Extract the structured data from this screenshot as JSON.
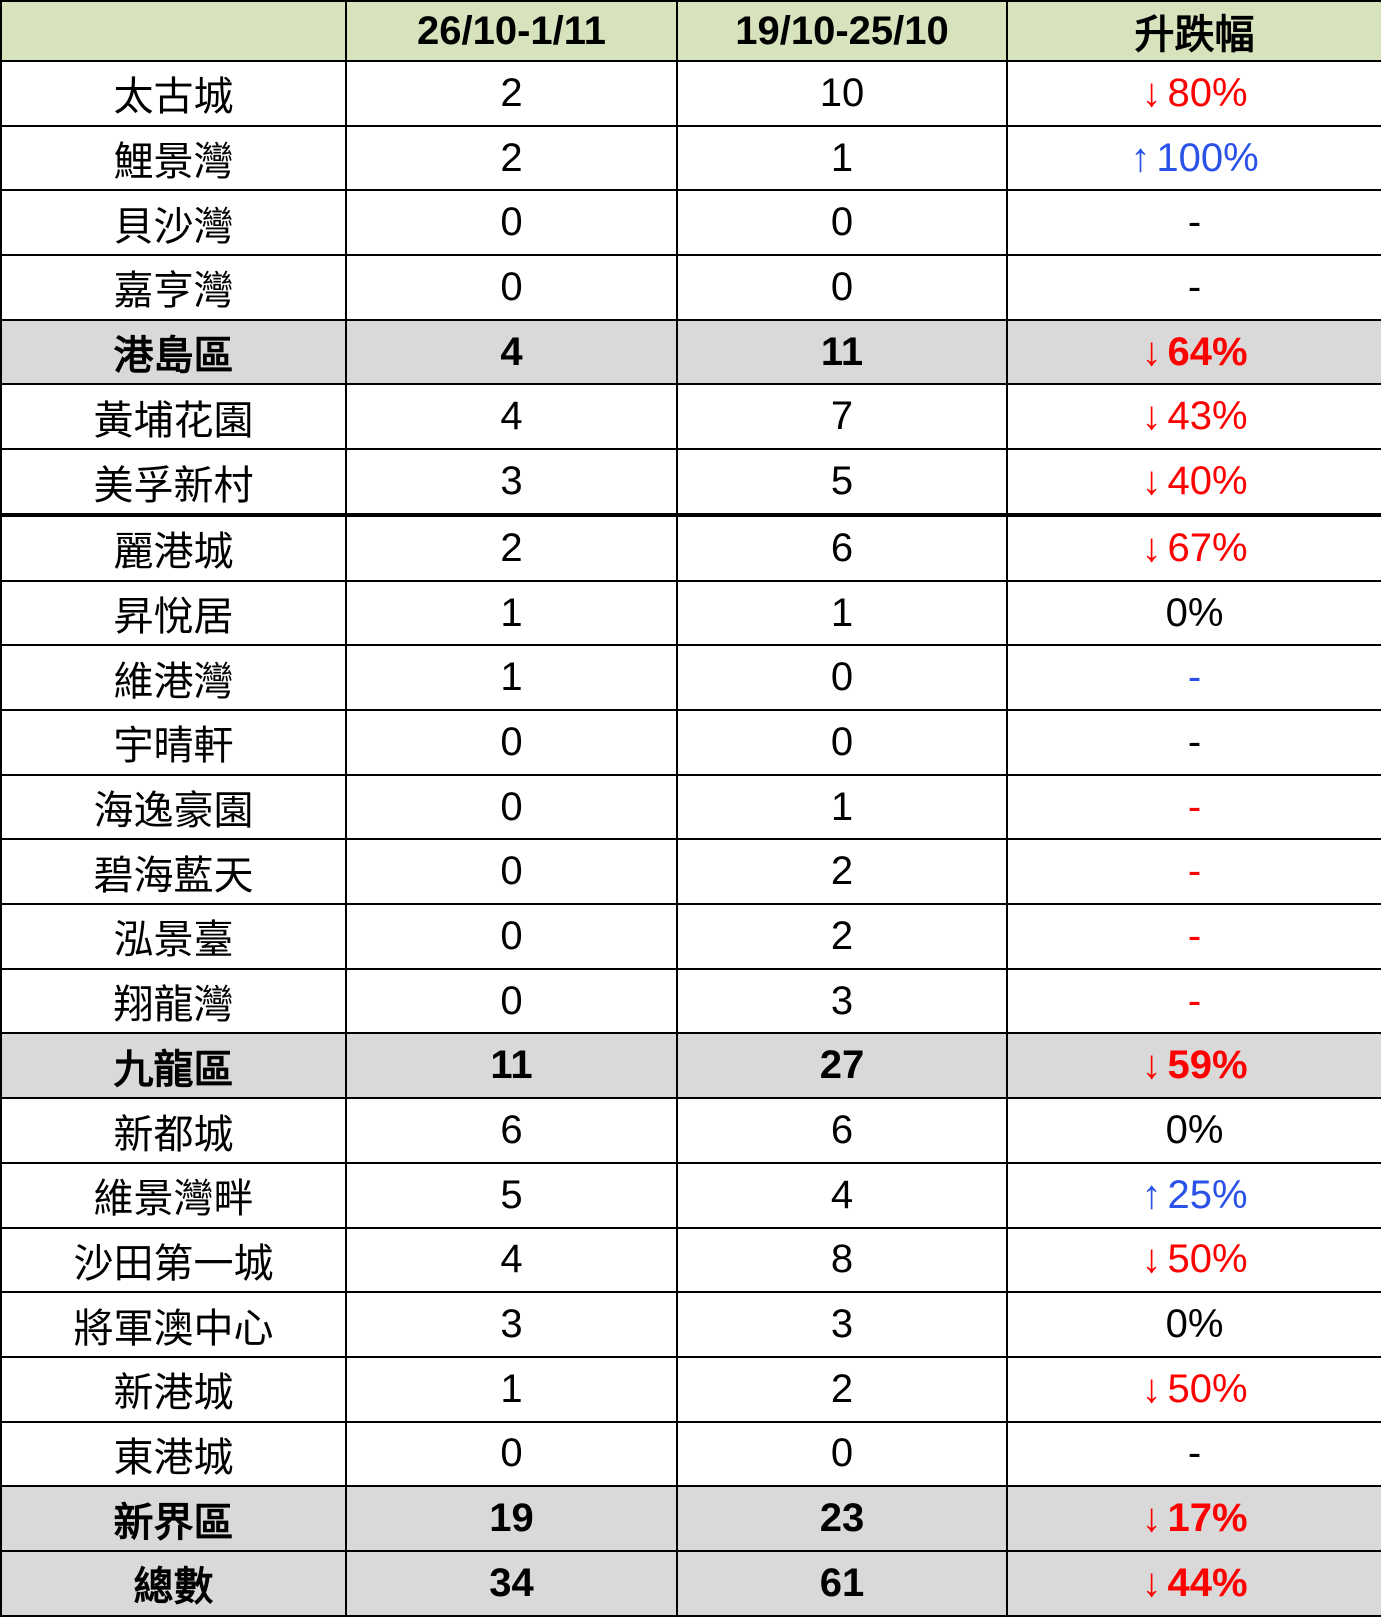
{
  "colors": {
    "header_bg": "#d6e3bc",
    "section_bg": "#d9d9d9",
    "red": "#ff0000",
    "blue": "#2a52e8",
    "border": "#000000",
    "text": "#000000"
  },
  "table": {
    "header": {
      "estate": "",
      "current_week": "26/10-1/11",
      "previous_week": "19/10-25/10",
      "change": "升跌幅"
    },
    "rows": [
      {
        "name": "太古城",
        "section": false,
        "current": "2",
        "previous": "10",
        "change": {
          "arrow": "↓",
          "text": "80%",
          "color": "red"
        }
      },
      {
        "name": "鯉景灣",
        "section": false,
        "current": "2",
        "previous": "1",
        "change": {
          "arrow": "↑",
          "text": "100%",
          "color": "blue"
        }
      },
      {
        "name": "貝沙灣",
        "section": false,
        "current": "0",
        "previous": "0",
        "change": {
          "arrow": "",
          "text": "-",
          "color": "black"
        }
      },
      {
        "name": "嘉亨灣",
        "section": false,
        "current": "0",
        "previous": "0",
        "change": {
          "arrow": "",
          "text": "-",
          "color": "black"
        }
      },
      {
        "name": "港島區",
        "section": true,
        "current": "4",
        "previous": "11",
        "change": {
          "arrow": "↓",
          "text": "64%",
          "color": "red"
        }
      },
      {
        "name": "黃埔花園",
        "section": false,
        "current": "4",
        "previous": "7",
        "change": {
          "arrow": "↓",
          "text": "43%",
          "color": "red"
        }
      },
      {
        "name": "美孚新村",
        "section": false,
        "current": "3",
        "previous": "5",
        "change": {
          "arrow": "↓",
          "text": "40%",
          "color": "red"
        },
        "thick_border_bottom": true
      },
      {
        "name": "麗港城",
        "section": false,
        "current": "2",
        "previous": "6",
        "change": {
          "arrow": "↓",
          "text": "67%",
          "color": "red"
        }
      },
      {
        "name": "昇悅居",
        "section": false,
        "current": "1",
        "previous": "1",
        "change": {
          "arrow": "",
          "text": "0%",
          "color": "black"
        }
      },
      {
        "name": "維港灣",
        "section": false,
        "current": "1",
        "previous": "0",
        "change": {
          "arrow": "",
          "text": "-",
          "color": "blue"
        }
      },
      {
        "name": "宇晴軒",
        "section": false,
        "current": "0",
        "previous": "0",
        "change": {
          "arrow": "",
          "text": "-",
          "color": "black"
        }
      },
      {
        "name": "海逸豪園",
        "section": false,
        "current": "0",
        "previous": "1",
        "change": {
          "arrow": "",
          "text": "-",
          "color": "red"
        }
      },
      {
        "name": "碧海藍天",
        "section": false,
        "current": "0",
        "previous": "2",
        "change": {
          "arrow": "",
          "text": "-",
          "color": "red"
        }
      },
      {
        "name": "泓景臺",
        "section": false,
        "current": "0",
        "previous": "2",
        "change": {
          "arrow": "",
          "text": "-",
          "color": "red"
        }
      },
      {
        "name": "翔龍灣",
        "section": false,
        "current": "0",
        "previous": "3",
        "change": {
          "arrow": "",
          "text": "-",
          "color": "red"
        }
      },
      {
        "name": "九龍區",
        "section": true,
        "current": "11",
        "previous": "27",
        "change": {
          "arrow": "↓",
          "text": "59%",
          "color": "red"
        }
      },
      {
        "name": "新都城",
        "section": false,
        "current": "6",
        "previous": "6",
        "change": {
          "arrow": "",
          "text": "0%",
          "color": "black"
        }
      },
      {
        "name": "維景灣畔",
        "section": false,
        "current": "5",
        "previous": "4",
        "change": {
          "arrow": "↑",
          "text": "25%",
          "color": "blue"
        }
      },
      {
        "name": "沙田第一城",
        "section": false,
        "current": "4",
        "previous": "8",
        "change": {
          "arrow": "↓",
          "text": "50%",
          "color": "red"
        }
      },
      {
        "name": "將軍澳中心",
        "section": false,
        "current": "3",
        "previous": "3",
        "change": {
          "arrow": "",
          "text": "0%",
          "color": "black"
        }
      },
      {
        "name": "新港城",
        "section": false,
        "current": "1",
        "previous": "2",
        "change": {
          "arrow": "↓",
          "text": "50%",
          "color": "red"
        }
      },
      {
        "name": "東港城",
        "section": false,
        "current": "0",
        "previous": "0",
        "change": {
          "arrow": "",
          "text": "-",
          "color": "black"
        }
      },
      {
        "name": "新界區",
        "section": true,
        "current": "19",
        "previous": "23",
        "change": {
          "arrow": "↓",
          "text": "17%",
          "color": "red"
        }
      },
      {
        "name": "總數",
        "section": true,
        "current": "34",
        "previous": "61",
        "change": {
          "arrow": "↓",
          "text": "44%",
          "color": "red"
        }
      }
    ]
  },
  "chart_data": {
    "type": "table",
    "columns": [
      "",
      "26/10-1/11",
      "19/10-25/10",
      "升跌幅"
    ],
    "categories": [
      "太古城",
      "鯉景灣",
      "貝沙灣",
      "嘉亨灣",
      "港島區",
      "黃埔花園",
      "美孚新村",
      "麗港城",
      "昇悅居",
      "維港灣",
      "宇晴軒",
      "海逸豪園",
      "碧海藍天",
      "泓景臺",
      "翔龍灣",
      "九龍區",
      "新都城",
      "維景灣畔",
      "沙田第一城",
      "將軍澳中心",
      "新港城",
      "東港城",
      "新界區",
      "總數"
    ],
    "section_total_rows": [
      "港島區",
      "九龍區",
      "新界區",
      "總數"
    ],
    "series": [
      {
        "name": "26/10-1/11",
        "values": [
          2,
          2,
          0,
          0,
          4,
          4,
          3,
          2,
          1,
          1,
          0,
          0,
          0,
          0,
          0,
          11,
          6,
          5,
          4,
          3,
          1,
          0,
          19,
          34
        ]
      },
      {
        "name": "19/10-25/10",
        "values": [
          10,
          1,
          0,
          0,
          11,
          7,
          5,
          6,
          1,
          0,
          0,
          1,
          2,
          2,
          3,
          27,
          6,
          4,
          8,
          3,
          2,
          0,
          23,
          61
        ]
      },
      {
        "name": "升跌幅",
        "values": [
          "↓80%",
          "↑100%",
          "-",
          "-",
          "↓64%",
          "↓43%",
          "↓40%",
          "↓67%",
          "0%",
          "-",
          "-",
          "-",
          "-",
          "-",
          "-",
          "↓59%",
          "0%",
          "↑25%",
          "↓50%",
          "0%",
          "↓50%",
          "-",
          "↓17%",
          "↓44%"
        ]
      }
    ]
  }
}
